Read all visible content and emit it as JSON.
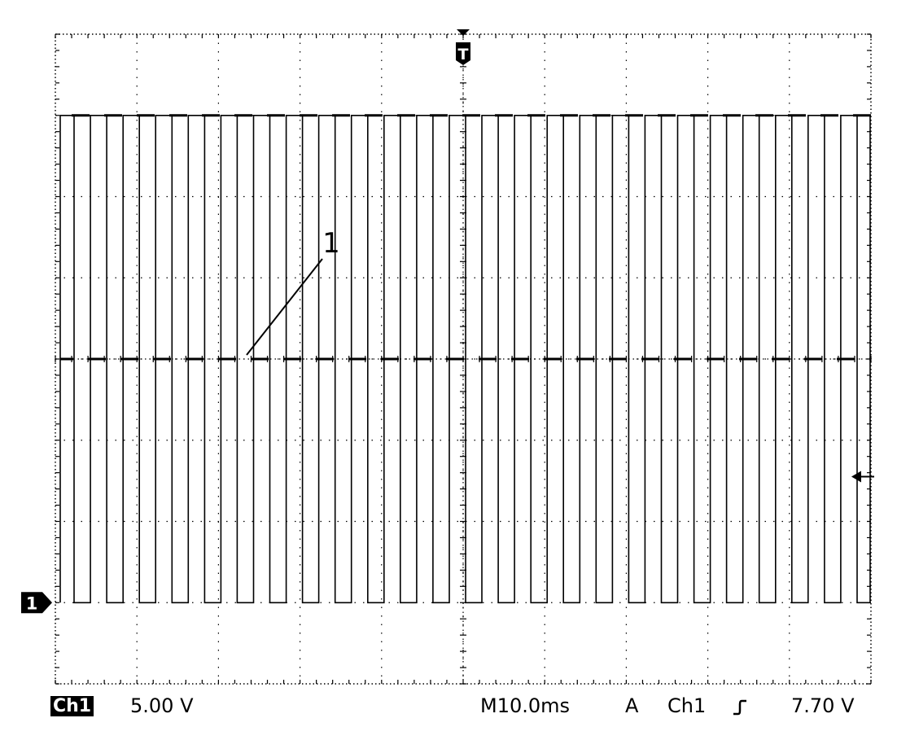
{
  "chart_data": {
    "type": "line",
    "title": "",
    "xlabel": "",
    "ylabel": "",
    "grid": true,
    "xlim": [
      0,
      100
    ],
    "ylim": [
      -20,
      20
    ],
    "x_divisions": 10,
    "y_divisions": 8,
    "series": [
      {
        "channel": "Ch1",
        "shape": "square-wave",
        "high_level_v": 15.0,
        "low_level_v": 0.0,
        "ground_marker_v": -15.0,
        "period_ms": 4.0,
        "points": [
          [
            0.6,
            -15
          ],
          [
            0.6,
            15
          ],
          [
            2.3,
            15
          ],
          [
            2.3,
            -15
          ],
          [
            4.3,
            -15
          ],
          [
            4.3,
            15
          ],
          [
            6.3,
            15
          ],
          [
            6.3,
            -15
          ],
          [
            8.3,
            -15
          ],
          [
            8.3,
            15
          ],
          [
            10.3,
            15
          ],
          [
            10.3,
            -15
          ],
          [
            12.3,
            -15
          ],
          [
            12.3,
            15
          ],
          [
            14.3,
            15
          ],
          [
            14.3,
            -15
          ],
          [
            16.3,
            -15
          ],
          [
            16.3,
            15
          ],
          [
            18.3,
            15
          ],
          [
            18.3,
            -15
          ],
          [
            20.3,
            -15
          ],
          [
            20.3,
            15
          ],
          [
            22.3,
            15
          ],
          [
            22.3,
            -15
          ],
          [
            24.3,
            -15
          ],
          [
            24.3,
            15
          ],
          [
            26.3,
            15
          ],
          [
            26.3,
            -15
          ],
          [
            28.3,
            -15
          ],
          [
            28.3,
            15
          ],
          [
            30.3,
            15
          ],
          [
            30.3,
            -15
          ],
          [
            32.3,
            -15
          ],
          [
            32.3,
            15
          ],
          [
            34.3,
            15
          ],
          [
            34.3,
            -15
          ],
          [
            36.3,
            -15
          ],
          [
            36.3,
            15
          ],
          [
            38.3,
            15
          ],
          [
            38.3,
            -15
          ],
          [
            40.3,
            -15
          ],
          [
            40.3,
            15
          ],
          [
            42.3,
            15
          ],
          [
            42.3,
            -15
          ],
          [
            44.3,
            -15
          ],
          [
            44.3,
            15
          ],
          [
            46.3,
            15
          ],
          [
            46.3,
            -15
          ],
          [
            48.3,
            -15
          ],
          [
            48.3,
            15
          ],
          [
            50.3,
            15
          ],
          [
            50.3,
            -15
          ],
          [
            52.3,
            -15
          ],
          [
            52.3,
            15
          ],
          [
            54.3,
            15
          ],
          [
            54.3,
            -15
          ],
          [
            56.3,
            -15
          ],
          [
            56.3,
            15
          ],
          [
            58.3,
            15
          ],
          [
            58.3,
            -15
          ],
          [
            60.3,
            -15
          ],
          [
            60.3,
            15
          ],
          [
            62.3,
            15
          ],
          [
            62.3,
            -15
          ],
          [
            64.3,
            -15
          ],
          [
            64.3,
            15
          ],
          [
            66.3,
            15
          ],
          [
            66.3,
            -15
          ],
          [
            68.3,
            -15
          ],
          [
            68.3,
            15
          ],
          [
            70.3,
            15
          ],
          [
            70.3,
            -15
          ],
          [
            72.3,
            -15
          ],
          [
            72.3,
            15
          ],
          [
            74.3,
            15
          ],
          [
            74.3,
            -15
          ],
          [
            76.3,
            -15
          ],
          [
            76.3,
            15
          ],
          [
            78.3,
            15
          ],
          [
            78.3,
            -15
          ],
          [
            80.3,
            -15
          ],
          [
            80.3,
            15
          ],
          [
            82.3,
            15
          ],
          [
            82.3,
            -15
          ],
          [
            84.3,
            -15
          ],
          [
            84.3,
            15
          ],
          [
            86.3,
            15
          ],
          [
            86.3,
            -15
          ],
          [
            88.3,
            -15
          ],
          [
            88.3,
            15
          ],
          [
            90.3,
            15
          ],
          [
            90.3,
            -15
          ],
          [
            92.3,
            -15
          ],
          [
            92.3,
            15
          ],
          [
            94.3,
            15
          ],
          [
            94.3,
            -15
          ],
          [
            96.3,
            -15
          ],
          [
            96.3,
            15
          ],
          [
            98.3,
            15
          ],
          [
            98.3,
            -15
          ],
          [
            99.9,
            -15
          ],
          [
            99.9,
            15
          ]
        ]
      }
    ],
    "annotations": [
      {
        "text": "1"
      }
    ],
    "markers": {
      "trigger_label": "T",
      "channel_marker_label": "1"
    }
  },
  "status_bar": {
    "channel_badge": "Ch1",
    "volts_per_div": "5.00 V",
    "timebase": "M10.0ms",
    "trigger_mode": "A",
    "trigger_source": "Ch1",
    "trigger_slope_icon": "rising-edge-icon",
    "trigger_level": "7.70 V"
  },
  "colors": {
    "background": "#ffffff",
    "trace": "#000000",
    "grid": "#000000"
  }
}
